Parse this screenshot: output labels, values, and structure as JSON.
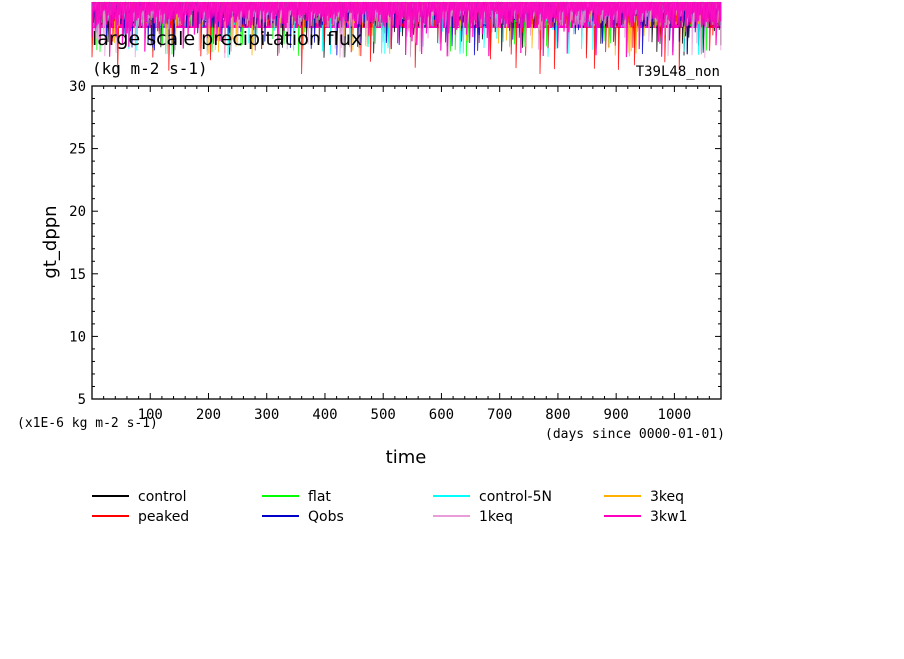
{
  "colors": {
    "background": "#ffffff",
    "axes": "#000000"
  },
  "chart_data": {
    "type": "line",
    "title": "large scale precipitation flux",
    "units": "(kg m-2 s-1)",
    "run_label": "T39L48_non",
    "xlabel": "time",
    "ylabel": "gt_dppn",
    "x_unit_note": "(days since 0000-01-01)",
    "y_scale_note": "(x1E-6 kg m-2 s-1)",
    "xlim": [
      0,
      1080
    ],
    "ylim": [
      5,
      30
    ],
    "x_ticks": [
      "100",
      "200",
      "300",
      "400",
      "500",
      "600",
      "700",
      "800",
      "900",
      "1000"
    ],
    "y_ticks": [
      "5",
      "10",
      "15",
      "20",
      "25",
      "30"
    ],
    "grid": false,
    "legend_position": "bottom",
    "note": "series values lie above the plotted y range (clipped above 30)",
    "series": [
      {
        "name": "control",
        "color": "#000000"
      },
      {
        "name": "flat",
        "color": "#00ff00"
      },
      {
        "name": "control-5N",
        "color": "#00ffff"
      },
      {
        "name": "3keq",
        "color": "#ffb000"
      },
      {
        "name": "peaked",
        "color": "#ff0000"
      },
      {
        "name": "Qobs",
        "color": "#0000c8"
      },
      {
        "name": "1keq",
        "color": "#e89cd8"
      },
      {
        "name": "3kw1",
        "color": "#ff00c0"
      }
    ]
  }
}
